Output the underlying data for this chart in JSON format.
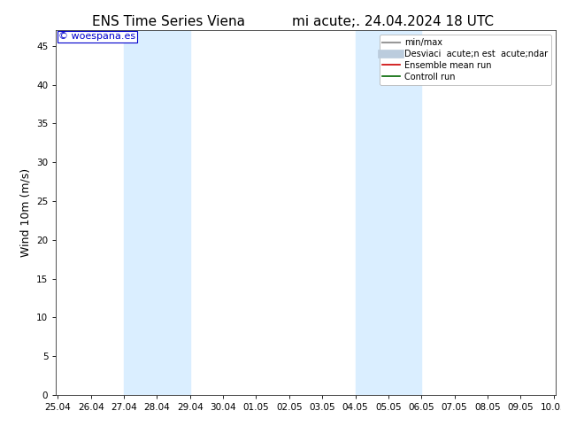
{
  "title_left": "ENS Time Series Viena",
  "title_right": "mi acute;. 24.04.2024 18 UTC",
  "ylabel": "Wind 10m (m/s)",
  "ylim": [
    0,
    47
  ],
  "yticks": [
    0,
    5,
    10,
    15,
    20,
    25,
    30,
    35,
    40,
    45
  ],
  "xtick_labels": [
    "25.04",
    "26.04",
    "27.04",
    "28.04",
    "29.04",
    "30.04",
    "01.05",
    "02.05",
    "03.05",
    "04.05",
    "05.05",
    "06.05",
    "07.05",
    "08.05",
    "09.05",
    "10.05"
  ],
  "shaded_bands": [
    {
      "x_start_label": "27.04",
      "x_end_label": "29.04"
    },
    {
      "x_start_label": "04.05",
      "x_end_label": "06.05"
    }
  ],
  "shaded_color": "#daeeff",
  "background_color": "#ffffff",
  "watermark_text": "© woespana.es",
  "watermark_color": "#0000cc",
  "legend_entries": [
    {
      "label": "min/max",
      "color": "#999999",
      "lw": 1.5,
      "style": "-"
    },
    {
      "label": "Desviaci  acute;n est  acute;ndar",
      "color": "#bbccdd",
      "lw": 7,
      "style": "-"
    },
    {
      "label": "Ensemble mean run",
      "color": "#cc0000",
      "lw": 1.2,
      "style": "-"
    },
    {
      "label": "Controll run",
      "color": "#006600",
      "lw": 1.2,
      "style": "-"
    }
  ],
  "title_fontsize": 11,
  "tick_fontsize": 7.5,
  "ylabel_fontsize": 9,
  "legend_fontsize": 7,
  "watermark_fontsize": 8
}
